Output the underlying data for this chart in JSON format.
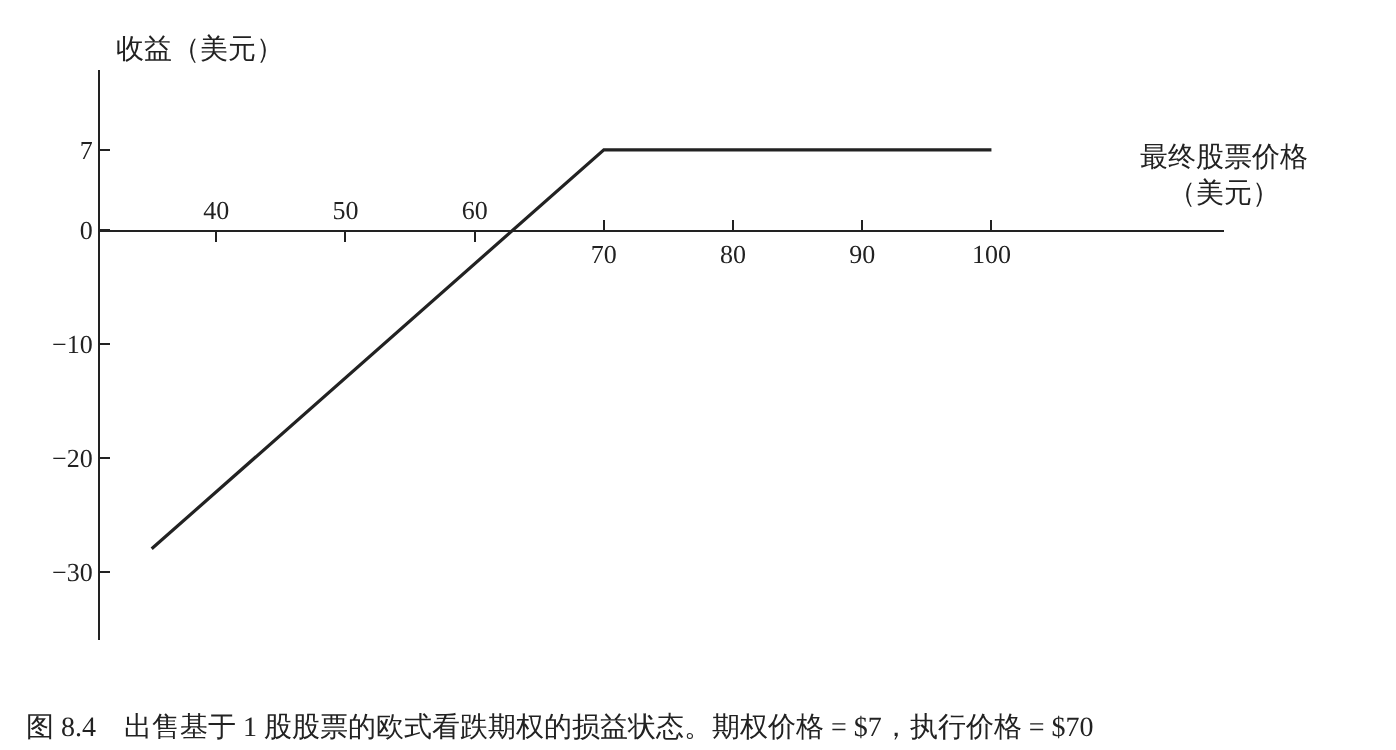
{
  "chart_data": {
    "type": "line",
    "xlabel": "最终股票价格（美元）",
    "ylabel": "收益（美元）",
    "x": [
      35,
      70,
      100
    ],
    "series": [
      {
        "color": "#222222",
        "values": [
          -28,
          7,
          7
        ]
      }
    ],
    "xlim": [
      31,
      118
    ],
    "xticks": [
      70,
      80,
      90,
      100
    ],
    "x2lim": [
      31,
      118
    ],
    "x2ticks": [
      40,
      50,
      60
    ],
    "ylim": [
      -36,
      14
    ],
    "yticks": [
      7,
      0,
      -10,
      -20,
      -30
    ],
    "marker": "none",
    "line_style": "solid",
    "annotations": [
      "图 8.4　出售基于 1 股股票的欧式看跌期权的损益状态。期权价格 = $7，执行价格 = $70"
    ]
  }
}
